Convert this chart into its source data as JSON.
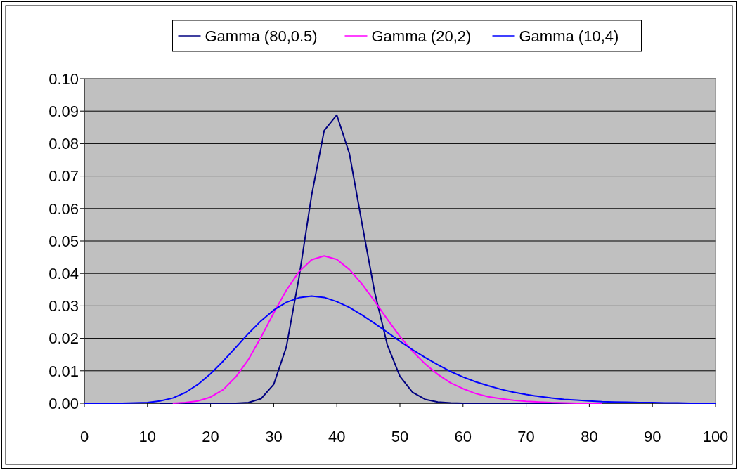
{
  "chart_data": {
    "type": "line",
    "x": [
      0,
      2,
      4,
      6,
      8,
      10,
      12,
      14,
      16,
      18,
      20,
      22,
      24,
      26,
      28,
      30,
      32,
      34,
      36,
      38,
      40,
      42,
      44,
      46,
      48,
      50,
      52,
      54,
      56,
      58,
      60,
      62,
      64,
      66,
      68,
      70,
      72,
      74,
      76,
      78,
      80,
      82,
      84,
      86,
      88,
      90,
      92,
      94,
      96,
      98,
      100
    ],
    "series": [
      {
        "name": "Gamma (80,0.5)",
        "color": "#000080",
        "values": [
          null,
          null,
          null,
          null,
          null,
          null,
          0,
          0,
          0,
          0,
          0,
          0,
          0,
          0.0002,
          0.0014,
          0.0058,
          0.0173,
          0.0386,
          0.064,
          0.084,
          0.0888,
          0.0769,
          0.0553,
          0.0342,
          0.018,
          0.0083,
          0.0034,
          0.0012,
          0.0004,
          0.0001,
          0,
          0,
          0,
          0,
          0,
          0,
          0,
          0,
          0,
          0,
          null,
          null,
          null,
          null,
          null,
          null,
          null,
          null,
          null,
          null,
          null
        ]
      },
      {
        "name": "Gamma (20,2)",
        "color": "#ff00ff",
        "values": [
          null,
          null,
          null,
          null,
          null,
          null,
          null,
          0,
          0.0002,
          0.0007,
          0.0019,
          0.0042,
          0.0081,
          0.0135,
          0.0204,
          0.0278,
          0.0348,
          0.0405,
          0.0442,
          0.0454,
          0.0443,
          0.0412,
          0.0367,
          0.0314,
          0.0259,
          0.0206,
          0.016,
          0.0121,
          0.0089,
          0.0063,
          0.0045,
          0.003,
          0.002,
          0.0014,
          0.0009,
          0.0006,
          0.0004,
          0.0002,
          0.0001,
          0,
          0,
          0,
          null,
          null,
          null,
          null,
          null,
          null,
          null,
          null,
          null
        ]
      },
      {
        "name": "Gamma (10,4)",
        "color": "#0000ff",
        "values": [
          0,
          0,
          0,
          0,
          0.0001,
          0.0002,
          0.0007,
          0.0016,
          0.0033,
          0.0058,
          0.0091,
          0.013,
          0.0172,
          0.0215,
          0.0254,
          0.0287,
          0.0311,
          0.0325,
          0.033,
          0.0326,
          0.0313,
          0.0295,
          0.0272,
          0.0246,
          0.0219,
          0.0191,
          0.0165,
          0.0141,
          0.0119,
          0.0098,
          0.0081,
          0.0066,
          0.0054,
          0.0043,
          0.0034,
          0.0027,
          0.0021,
          0.0016,
          0.0012,
          0.001,
          0.0007,
          0.0005,
          0.0004,
          0.0003,
          0.0002,
          0.0002,
          0.0001,
          0.0001,
          0,
          0,
          0
        ]
      }
    ],
    "xlim": [
      0,
      100
    ],
    "xticks": [
      0,
      10,
      20,
      30,
      40,
      50,
      60,
      70,
      80,
      90,
      100
    ],
    "ylim": [
      0,
      0.1
    ],
    "yticks": [
      {
        "value": 0,
        "label": "0.00"
      },
      {
        "value": 0.01,
        "label": "0.01"
      },
      {
        "value": 0.02,
        "label": "0.02"
      },
      {
        "value": 0.03,
        "label": "0.03"
      },
      {
        "value": 0.04,
        "label": "0.04"
      },
      {
        "value": 0.05,
        "label": "0.05"
      },
      {
        "value": 0.06,
        "label": "0.06"
      },
      {
        "value": 0.07,
        "label": "0.07"
      },
      {
        "value": 0.08,
        "label": "0.08"
      },
      {
        "value": 0.09,
        "label": "0.09"
      },
      {
        "value": 0.1,
        "label": "0.10"
      }
    ],
    "grid": "y",
    "legend": "top",
    "marker": "none",
    "line_style": "solid"
  }
}
